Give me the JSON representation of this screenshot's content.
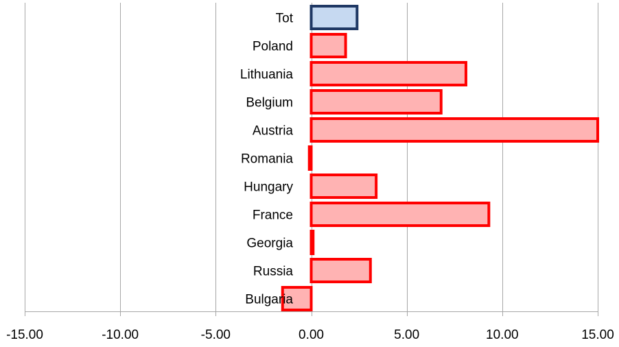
{
  "chart_data": {
    "type": "bar",
    "orientation": "horizontal",
    "title": "",
    "xlabel": "",
    "ylabel": "",
    "xlim": [
      -15,
      15
    ],
    "grid": true,
    "legend": "none",
    "x_ticks": [
      "-15.00",
      "-10.00",
      "-5.00",
      "0.00",
      "5.00",
      "10.00",
      "15.00"
    ],
    "x_tick_values": [
      -15,
      -10,
      -5,
      0,
      5,
      10,
      15
    ],
    "categories": [
      "Tot",
      "Poland",
      "Lithuania",
      "Belgium",
      "Austria",
      "Romania",
      "Hungary",
      "France",
      "Georgia",
      "Russia",
      "Bulgaria"
    ],
    "values": [
      2.4,
      1.8,
      8.1,
      6.8,
      15.0,
      -0.1,
      3.4,
      9.3,
      0.1,
      3.1,
      -1.5
    ],
    "colors": {
      "total_fill": "#c6d9f1",
      "total_stroke": "#1f3864",
      "country_fill": "#ffb3b3",
      "country_stroke": "#ff0000",
      "grid": "#a6a6a6",
      "text": "#000000"
    }
  }
}
